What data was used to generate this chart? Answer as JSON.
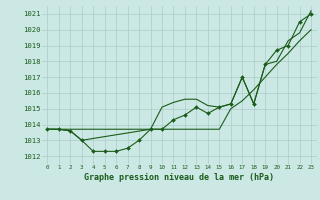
{
  "bg_color": "#cce8e4",
  "grid_color": "#aaccc8",
  "line_color": "#1a5c1a",
  "xlabel": "Graphe pression niveau de la mer (hPa)",
  "ylabel_ticks": [
    1012,
    1013,
    1014,
    1015,
    1016,
    1017,
    1018,
    1019,
    1020,
    1021
  ],
  "xticks": [
    0,
    1,
    2,
    3,
    4,
    5,
    6,
    7,
    8,
    9,
    10,
    11,
    12,
    13,
    14,
    15,
    16,
    17,
    18,
    19,
    20,
    21,
    22,
    23
  ],
  "xlim": [
    -0.5,
    23.5
  ],
  "ylim": [
    1011.5,
    1021.5
  ],
  "series1_x": [
    0,
    1,
    2,
    3,
    4,
    5,
    6,
    7,
    8,
    9,
    10,
    11,
    12,
    13,
    14,
    15,
    16,
    17,
    18,
    19,
    20,
    21,
    22,
    23
  ],
  "series1_y": [
    1013.7,
    1013.7,
    1013.6,
    1013.0,
    1012.3,
    1012.3,
    1012.3,
    1012.5,
    1013.0,
    1013.7,
    1013.7,
    1014.3,
    1014.6,
    1015.1,
    1014.7,
    1015.1,
    1015.3,
    1017.0,
    1015.3,
    1017.8,
    1018.7,
    1019.0,
    1020.5,
    1021.0
  ],
  "series2_x": [
    0,
    1,
    2,
    3,
    9,
    10,
    11,
    12,
    13,
    14,
    15,
    16,
    17,
    18,
    19,
    20,
    21,
    22,
    23
  ],
  "series2_y": [
    1013.7,
    1013.7,
    1013.6,
    1013.0,
    1013.7,
    1013.7,
    1013.7,
    1013.7,
    1013.7,
    1013.7,
    1013.7,
    1015.0,
    1015.5,
    1016.2,
    1017.0,
    1017.8,
    1018.5,
    1019.3,
    1020.0
  ],
  "series3_x": [
    0,
    9,
    10,
    11,
    12,
    13,
    14,
    15,
    16,
    17,
    18,
    19,
    20,
    21,
    22,
    23
  ],
  "series3_y": [
    1013.7,
    1013.7,
    1015.1,
    1015.4,
    1015.6,
    1015.6,
    1015.2,
    1015.1,
    1015.3,
    1017.0,
    1015.3,
    1017.8,
    1018.0,
    1019.3,
    1019.8,
    1021.2
  ]
}
